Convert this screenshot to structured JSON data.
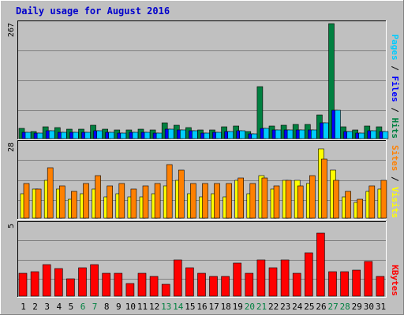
{
  "chart_data": {
    "type": "bar",
    "title": "Daily usage for August 2016",
    "categories": [
      "1",
      "2",
      "3",
      "4",
      "5",
      "6",
      "7",
      "8",
      "9",
      "10",
      "11",
      "12",
      "13",
      "14",
      "15",
      "16",
      "17",
      "18",
      "19",
      "20",
      "21",
      "22",
      "23",
      "24",
      "25",
      "26",
      "27",
      "28",
      "29",
      "30",
      "31"
    ],
    "weekend_days": [
      "6",
      "7",
      "13",
      "14",
      "20",
      "21",
      "27",
      "28"
    ],
    "panels": [
      {
        "id": "hits_files_pages",
        "max_label": "267",
        "ylim": [
          0,
          267
        ],
        "right_label_parts": [
          "Pages",
          " / ",
          "Files",
          " / ",
          "Hits"
        ],
        "right_label_colors": [
          "#00ccff",
          "#000000",
          "#0000ff",
          "#000000",
          "#008040"
        ],
        "series": [
          {
            "name": "Hits",
            "color": "#008040",
            "values": [
              23,
              17,
              27,
              25,
              22,
              22,
              32,
              22,
              20,
              21,
              22,
              20,
              36,
              32,
              26,
              20,
              20,
              27,
              29,
              16,
              120,
              30,
              32,
              33,
              33,
              55,
              267,
              27,
              20,
              29,
              27
            ]
          },
          {
            "name": "Files",
            "color": "#0000ff",
            "values": [
              14,
              12,
              19,
              15,
              14,
              15,
              19,
              15,
              13,
              14,
              14,
              12,
              22,
              20,
              18,
              13,
              14,
              17,
              18,
              11,
              23,
              20,
              20,
              21,
              21,
              36,
              65,
              17,
              13,
              19,
              17
            ]
          },
          {
            "name": "Pages",
            "color": "#00ccff",
            "values": [
              14,
              12,
              19,
              15,
              14,
              15,
              19,
              15,
              13,
              14,
              14,
              12,
              22,
              20,
              18,
              13,
              14,
              17,
              18,
              11,
              23,
              20,
              20,
              21,
              21,
              36,
              65,
              17,
              13,
              19,
              17
            ]
          }
        ]
      },
      {
        "id": "visits_sites",
        "max_label": "28",
        "ylim": [
          0,
          28
        ],
        "right_label_parts": [
          "Sites",
          " / ",
          "Visits"
        ],
        "right_label_colors": [
          "#ff8000",
          "#000000",
          "#ffff00"
        ],
        "series": [
          {
            "name": "Visits",
            "color": "#ffff00",
            "values": [
              9,
              11,
              14,
              11,
              7,
              9,
              11,
              8,
              9,
              8,
              8,
              9,
              12,
              14,
              9,
              8,
              9,
              8,
              14,
              9,
              16,
              11,
              14,
              14,
              13,
              26,
              18,
              8,
              6,
              10,
              11
            ]
          },
          {
            "name": "Sites",
            "color": "#ff8000",
            "values": [
              13,
              11,
              19,
              12,
              10,
              13,
              16,
              12,
              13,
              11,
              12,
              13,
              20,
              18,
              13,
              13,
              13,
              13,
              15,
              13,
              15,
              12,
              14,
              12,
              16,
              22,
              14,
              10,
              7,
              12,
              14
            ]
          }
        ]
      },
      {
        "id": "kbytes",
        "max_label": "5",
        "ylim": [
          0,
          5
        ],
        "right_label_parts": [
          "KBytes"
        ],
        "right_label_colors": [
          "#ff0000"
        ],
        "series": [
          {
            "name": "KBytes",
            "color": "#ff0000",
            "values": [
              1.6,
              1.7,
              2.2,
              1.9,
              1.2,
              2.0,
              2.2,
              1.6,
              1.6,
              0.9,
              1.6,
              1.4,
              0.8,
              2.5,
              2.0,
              1.6,
              1.4,
              1.4,
              2.3,
              1.6,
              2.5,
              2.0,
              2.5,
              1.6,
              3.0,
              4.4,
              1.7,
              1.7,
              1.8,
              2.4,
              1.4
            ]
          }
        ]
      }
    ]
  }
}
